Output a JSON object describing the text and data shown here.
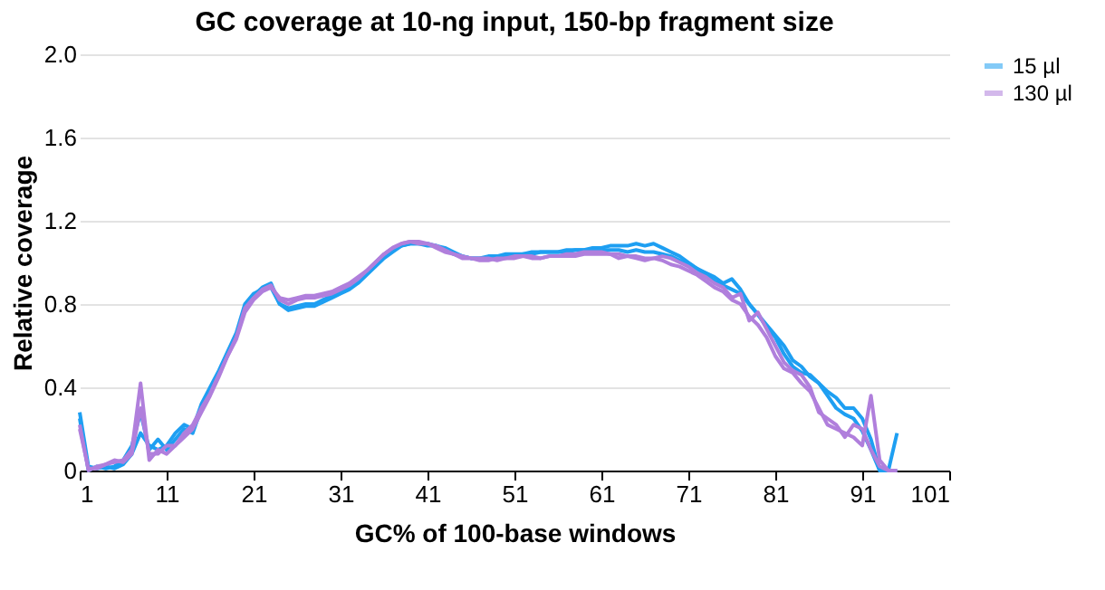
{
  "chart_data": {
    "type": "line",
    "title": "GC coverage at 10-ng input, 150-bp fragment size",
    "xlabel": "GC% of 100-base windows",
    "ylabel": "Relative coverage",
    "x": [
      1,
      2,
      3,
      4,
      5,
      6,
      7,
      8,
      9,
      10,
      11,
      12,
      13,
      14,
      15,
      16,
      17,
      18,
      19,
      20,
      21,
      22,
      23,
      24,
      25,
      26,
      27,
      28,
      29,
      30,
      31,
      32,
      33,
      34,
      35,
      36,
      37,
      38,
      39,
      40,
      41,
      42,
      43,
      44,
      45,
      46,
      47,
      48,
      49,
      50,
      51,
      52,
      53,
      54,
      55,
      56,
      57,
      58,
      59,
      60,
      61,
      62,
      63,
      64,
      65,
      66,
      67,
      68,
      69,
      70,
      71,
      72,
      73,
      74,
      75,
      76,
      77,
      78,
      79,
      80,
      81,
      82,
      83,
      84,
      85,
      86,
      87,
      88,
      89,
      90,
      91,
      92,
      93,
      94,
      95
    ],
    "xlim": [
      1,
      101
    ],
    "xticks": [
      1,
      11,
      21,
      31,
      41,
      51,
      61,
      71,
      81,
      91,
      101
    ],
    "ylim": [
      0,
      2.0
    ],
    "yticks": [
      0,
      0.4,
      0.8,
      1.2,
      1.6,
      {
        "value": 2.0,
        "label": "2.0"
      }
    ],
    "grid": "y",
    "legend": "top right",
    "series": [
      {
        "name": "15 µl",
        "color": "#1e9ff2",
        "values": [
          0.25,
          0.0,
          0.02,
          0.01,
          0.02,
          0.05,
          0.12,
          0.28,
          0.1,
          0.15,
          0.1,
          0.15,
          0.2,
          0.18,
          0.3,
          0.38,
          0.47,
          0.56,
          0.65,
          0.78,
          0.84,
          0.88,
          0.9,
          0.8,
          0.78,
          0.79,
          0.8,
          0.8,
          0.82,
          0.84,
          0.86,
          0.88,
          0.91,
          0.95,
          0.99,
          1.03,
          1.06,
          1.08,
          1.09,
          1.09,
          1.09,
          1.08,
          1.07,
          1.05,
          1.03,
          1.02,
          1.02,
          1.02,
          1.03,
          1.03,
          1.03,
          1.04,
          1.04,
          1.05,
          1.05,
          1.05,
          1.05,
          1.06,
          1.06,
          1.07,
          1.07,
          1.08,
          1.08,
          1.08,
          1.09,
          1.08,
          1.09,
          1.07,
          1.05,
          1.03,
          1.0,
          0.97,
          0.95,
          0.93,
          0.9,
          0.92,
          0.87,
          0.8,
          0.75,
          0.7,
          0.65,
          0.6,
          0.53,
          0.5,
          0.45,
          0.42,
          0.38,
          0.35,
          0.3,
          0.3,
          0.25,
          0.15,
          0.0,
          0.0,
          0.18
        ]
      },
      {
        "color": "#1e9ff2",
        "values": [
          0.28,
          0.02,
          0.01,
          0.02,
          0.01,
          0.03,
          0.08,
          0.18,
          0.12,
          0.1,
          0.12,
          0.18,
          0.22,
          0.2,
          0.32,
          0.4,
          0.48,
          0.57,
          0.66,
          0.8,
          0.85,
          0.87,
          0.88,
          0.8,
          0.77,
          0.78,
          0.79,
          0.79,
          0.81,
          0.83,
          0.85,
          0.87,
          0.9,
          0.94,
          0.98,
          1.02,
          1.05,
          1.08,
          1.09,
          1.09,
          1.08,
          1.08,
          1.06,
          1.04,
          1.03,
          1.02,
          1.02,
          1.03,
          1.03,
          1.04,
          1.04,
          1.04,
          1.05,
          1.05,
          1.05,
          1.05,
          1.06,
          1.06,
          1.06,
          1.06,
          1.06,
          1.06,
          1.06,
          1.05,
          1.06,
          1.05,
          1.05,
          1.04,
          1.03,
          1.01,
          0.99,
          0.97,
          0.94,
          0.91,
          0.89,
          0.87,
          0.85,
          0.8,
          0.75,
          0.69,
          0.64,
          0.56,
          0.5,
          0.47,
          0.46,
          0.42,
          0.36,
          0.3,
          0.27,
          0.25,
          0.19,
          0.1,
          0.0,
          0.0,
          0.0
        ]
      },
      {
        "name": "130 µl",
        "color": "#b07fdc",
        "values": [
          0.22,
          0.0,
          0.02,
          0.03,
          0.04,
          0.05,
          0.1,
          0.42,
          0.05,
          0.1,
          0.08,
          0.12,
          0.16,
          0.2,
          0.28,
          0.36,
          0.45,
          0.55,
          0.64,
          0.78,
          0.83,
          0.87,
          0.89,
          0.82,
          0.8,
          0.82,
          0.83,
          0.83,
          0.84,
          0.85,
          0.87,
          0.89,
          0.92,
          0.96,
          1.0,
          1.04,
          1.07,
          1.09,
          1.1,
          1.1,
          1.09,
          1.08,
          1.06,
          1.04,
          1.02,
          1.02,
          1.02,
          1.02,
          1.01,
          1.02,
          1.02,
          1.03,
          1.03,
          1.02,
          1.03,
          1.03,
          1.04,
          1.04,
          1.05,
          1.05,
          1.05,
          1.04,
          1.04,
          1.03,
          1.03,
          1.02,
          1.02,
          1.03,
          1.02,
          1.0,
          0.98,
          0.95,
          0.93,
          0.9,
          0.88,
          0.83,
          0.85,
          0.72,
          0.76,
          0.68,
          0.6,
          0.52,
          0.48,
          0.46,
          0.4,
          0.28,
          0.25,
          0.22,
          0.16,
          0.22,
          0.2,
          0.1,
          0.02,
          0.0,
          0.0
        ]
      },
      {
        "color": "#b07fdc",
        "values": [
          0.2,
          0.01,
          0.01,
          0.03,
          0.05,
          0.04,
          0.08,
          0.3,
          0.08,
          0.08,
          0.12,
          0.12,
          0.18,
          0.22,
          0.3,
          0.37,
          0.46,
          0.55,
          0.63,
          0.76,
          0.82,
          0.86,
          0.88,
          0.83,
          0.82,
          0.83,
          0.84,
          0.84,
          0.85,
          0.86,
          0.88,
          0.9,
          0.93,
          0.96,
          1.0,
          1.04,
          1.07,
          1.09,
          1.1,
          1.09,
          1.09,
          1.07,
          1.05,
          1.04,
          1.03,
          1.02,
          1.01,
          1.01,
          1.02,
          1.02,
          1.03,
          1.03,
          1.02,
          1.02,
          1.03,
          1.03,
          1.03,
          1.03,
          1.04,
          1.04,
          1.04,
          1.04,
          1.02,
          1.03,
          1.02,
          1.01,
          1.02,
          1.01,
          0.99,
          0.98,
          0.96,
          0.94,
          0.91,
          0.88,
          0.86,
          0.82,
          0.8,
          0.74,
          0.7,
          0.64,
          0.55,
          0.49,
          0.47,
          0.42,
          0.38,
          0.3,
          0.22,
          0.2,
          0.18,
          0.16,
          0.12,
          0.36,
          0.05,
          0.0,
          0.0
        ]
      }
    ]
  }
}
